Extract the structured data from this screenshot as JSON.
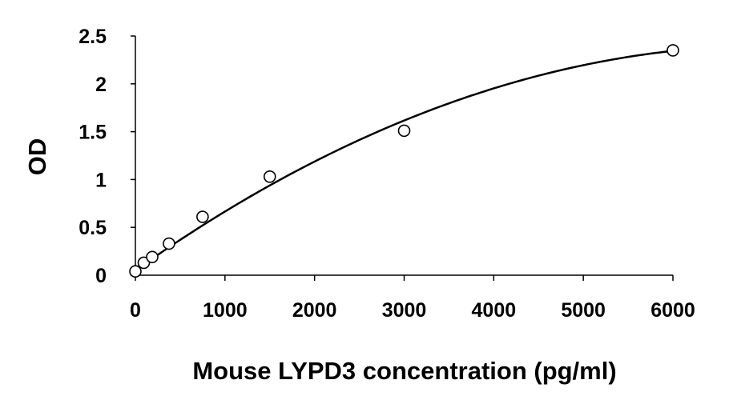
{
  "chart_data": {
    "type": "scatter",
    "xlabel": "Mouse LYPD3 concentration (pg/ml)",
    "ylabel": "OD",
    "xlim": [
      0,
      6000
    ],
    "ylim": [
      0,
      2.5
    ],
    "xticks": [
      "0",
      "1000",
      "2000",
      "3000",
      "4000",
      "5000",
      "6000"
    ],
    "yticks": [
      "0",
      "0.5",
      "1",
      "1.5",
      "2",
      "2.5"
    ],
    "xtick_values": [
      0,
      1000,
      2000,
      3000,
      4000,
      5000,
      6000
    ],
    "ytick_values": [
      0,
      0.5,
      1,
      1.5,
      2,
      2.5
    ],
    "grid": false,
    "points": [
      {
        "x": 0,
        "y": 0.04
      },
      {
        "x": 94,
        "y": 0.13
      },
      {
        "x": 188,
        "y": 0.19
      },
      {
        "x": 375,
        "y": 0.33
      },
      {
        "x": 750,
        "y": 0.61
      },
      {
        "x": 1500,
        "y": 1.03
      },
      {
        "x": 3000,
        "y": 1.51
      },
      {
        "x": 6000,
        "y": 2.35
      }
    ],
    "fit_curve": {
      "type": "polynomial",
      "coefficients": [
        0.05,
        0.000662,
        -4.66e-08
      ]
    },
    "marker_color": "#000000",
    "line_color": "#000000"
  }
}
